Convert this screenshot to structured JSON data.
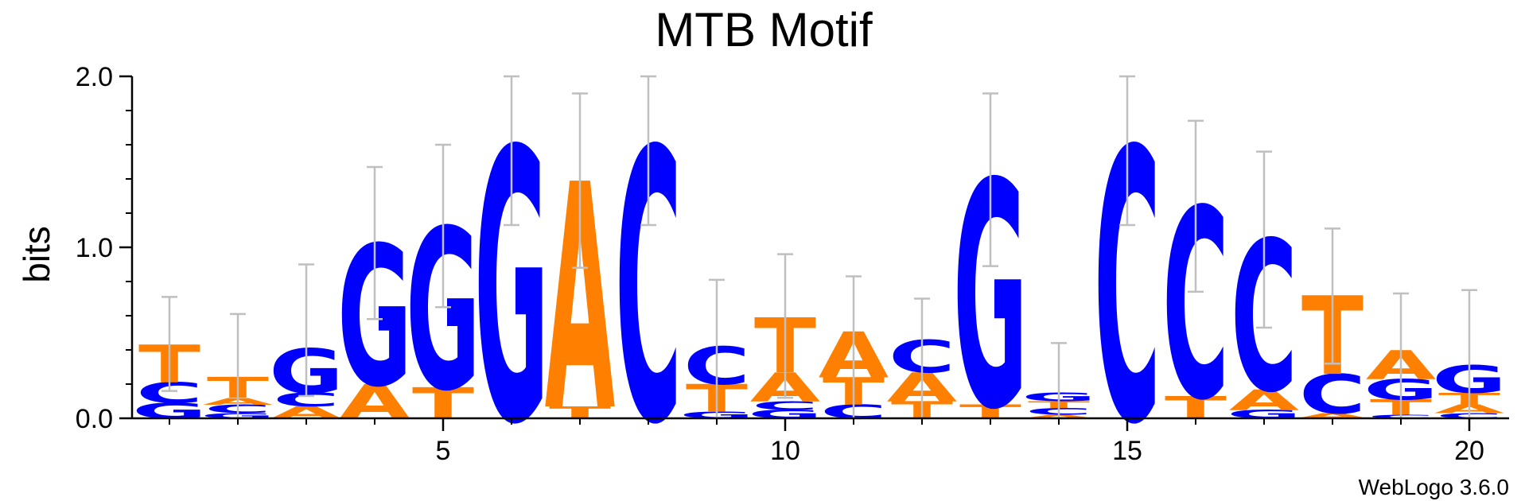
{
  "chart_data": {
    "type": "sequence-logo",
    "title": "MTB Motif",
    "ylabel": "bits",
    "xlabel": "",
    "ylim": [
      0,
      2.0
    ],
    "y_ticks": [
      {
        "value": 0.0,
        "label": "0.0"
      },
      {
        "value": 1.0,
        "label": "1.0"
      },
      {
        "value": 2.0,
        "label": "2.0"
      }
    ],
    "x_ticks": [
      {
        "value": 5,
        "label": "5"
      },
      {
        "value": 10,
        "label": "10"
      },
      {
        "value": 15,
        "label": "15"
      },
      {
        "value": 20,
        "label": "20"
      }
    ],
    "credit": "WebLogo 3.6.0",
    "colors": {
      "A": "#ff8000",
      "T": "#ff8000",
      "C": "#0000ff",
      "G": "#0000ff"
    },
    "error_bar_color": "#bfbfbf",
    "positions": [
      {
        "pos": 1,
        "err": [
          0.16,
          0.71
        ],
        "stack": [
          {
            "letter": "G",
            "bits": 0.09
          },
          {
            "letter": "C",
            "bits": 0.12
          },
          {
            "letter": "T",
            "bits": 0.22
          }
        ]
      },
      {
        "pos": 2,
        "err": [
          0.0,
          0.61
        ],
        "stack": [
          {
            "letter": "G",
            "bits": 0.03
          },
          {
            "letter": "C",
            "bits": 0.05
          },
          {
            "letter": "A",
            "bits": 0.04
          },
          {
            "letter": "T",
            "bits": 0.12
          }
        ]
      },
      {
        "pos": 3,
        "err": [
          0.13,
          0.9
        ],
        "stack": [
          {
            "letter": "A",
            "bits": 0.07
          },
          {
            "letter": "C",
            "bits": 0.08
          },
          {
            "letter": "G",
            "bits": 0.26
          }
        ]
      },
      {
        "pos": 4,
        "err": [
          0.58,
          1.47
        ],
        "stack": [
          {
            "letter": "A",
            "bits": 0.2
          },
          {
            "letter": "G",
            "bits": 0.82
          }
        ]
      },
      {
        "pos": 5,
        "err": [
          0.65,
          1.6
        ],
        "stack": [
          {
            "letter": "T",
            "bits": 0.18
          },
          {
            "letter": "G",
            "bits": 0.94
          }
        ]
      },
      {
        "pos": 6,
        "err": [
          1.13,
          2.0
        ],
        "stack": [
          {
            "letter": "G",
            "bits": 1.59
          }
        ]
      },
      {
        "pos": 7,
        "err": [
          0.88,
          1.9
        ],
        "stack": [
          {
            "letter": "T",
            "bits": 0.07
          },
          {
            "letter": "A",
            "bits": 1.32
          }
        ]
      },
      {
        "pos": 8,
        "err": [
          1.13,
          2.0
        ],
        "stack": [
          {
            "letter": "C",
            "bits": 1.59
          }
        ]
      },
      {
        "pos": 9,
        "err": [
          0.0,
          0.81
        ],
        "stack": [
          {
            "letter": "G",
            "bits": 0.04
          },
          {
            "letter": "T",
            "bits": 0.16
          },
          {
            "letter": "C",
            "bits": 0.22
          }
        ]
      },
      {
        "pos": 10,
        "err": [
          0.12,
          0.96
        ],
        "stack": [
          {
            "letter": "G",
            "bits": 0.05
          },
          {
            "letter": "C",
            "bits": 0.05
          },
          {
            "letter": "A",
            "bits": 0.17
          },
          {
            "letter": "T",
            "bits": 0.32
          }
        ]
      },
      {
        "pos": 11,
        "err": [
          0.0,
          0.83
        ],
        "stack": [
          {
            "letter": "C",
            "bits": 0.08
          },
          {
            "letter": "T",
            "bits": 0.16
          },
          {
            "letter": "A",
            "bits": 0.27
          }
        ]
      },
      {
        "pos": 12,
        "err": [
          0.0,
          0.7
        ],
        "stack": [
          {
            "letter": "T",
            "bits": 0.1
          },
          {
            "letter": "A",
            "bits": 0.17
          },
          {
            "letter": "C",
            "bits": 0.19
          }
        ]
      },
      {
        "pos": 13,
        "err": [
          0.89,
          1.9
        ],
        "stack": [
          {
            "letter": "T",
            "bits": 0.08
          },
          {
            "letter": "G",
            "bits": 1.32
          }
        ]
      },
      {
        "pos": 14,
        "err": [
          0.0,
          0.44
        ],
        "stack": [
          {
            "letter": "A",
            "bits": 0.02
          },
          {
            "letter": "C",
            "bits": 0.04
          },
          {
            "letter": "T",
            "bits": 0.04
          },
          {
            "letter": "G",
            "bits": 0.05
          }
        ]
      },
      {
        "pos": 15,
        "err": [
          1.13,
          2.0
        ],
        "stack": [
          {
            "letter": "C",
            "bits": 1.59
          }
        ]
      },
      {
        "pos": 16,
        "err": [
          0.74,
          1.74
        ],
        "stack": [
          {
            "letter": "T",
            "bits": 0.13
          },
          {
            "letter": "C",
            "bits": 1.11
          }
        ]
      },
      {
        "pos": 17,
        "err": [
          0.53,
          1.56
        ],
        "stack": [
          {
            "letter": "G",
            "bits": 0.05
          },
          {
            "letter": "A",
            "bits": 0.12
          },
          {
            "letter": "C",
            "bits": 0.88
          }
        ]
      },
      {
        "pos": 18,
        "err": [
          0.32,
          1.11
        ],
        "stack": [
          {
            "letter": "A",
            "bits": 0.03
          },
          {
            "letter": "C",
            "bits": 0.23
          },
          {
            "letter": "T",
            "bits": 0.46
          }
        ]
      },
      {
        "pos": 19,
        "err": [
          0.0,
          0.73
        ],
        "stack": [
          {
            "letter": "C",
            "bits": 0.02
          },
          {
            "letter": "T",
            "bits": 0.09
          },
          {
            "letter": "G",
            "bits": 0.12
          },
          {
            "letter": "A",
            "bits": 0.17
          }
        ]
      },
      {
        "pos": 20,
        "err": [
          0.0,
          0.75
        ],
        "stack": [
          {
            "letter": "C",
            "bits": 0.03
          },
          {
            "letter": "A",
            "bits": 0.05
          },
          {
            "letter": "T",
            "bits": 0.07
          },
          {
            "letter": "G",
            "bits": 0.16
          }
        ]
      }
    ]
  }
}
